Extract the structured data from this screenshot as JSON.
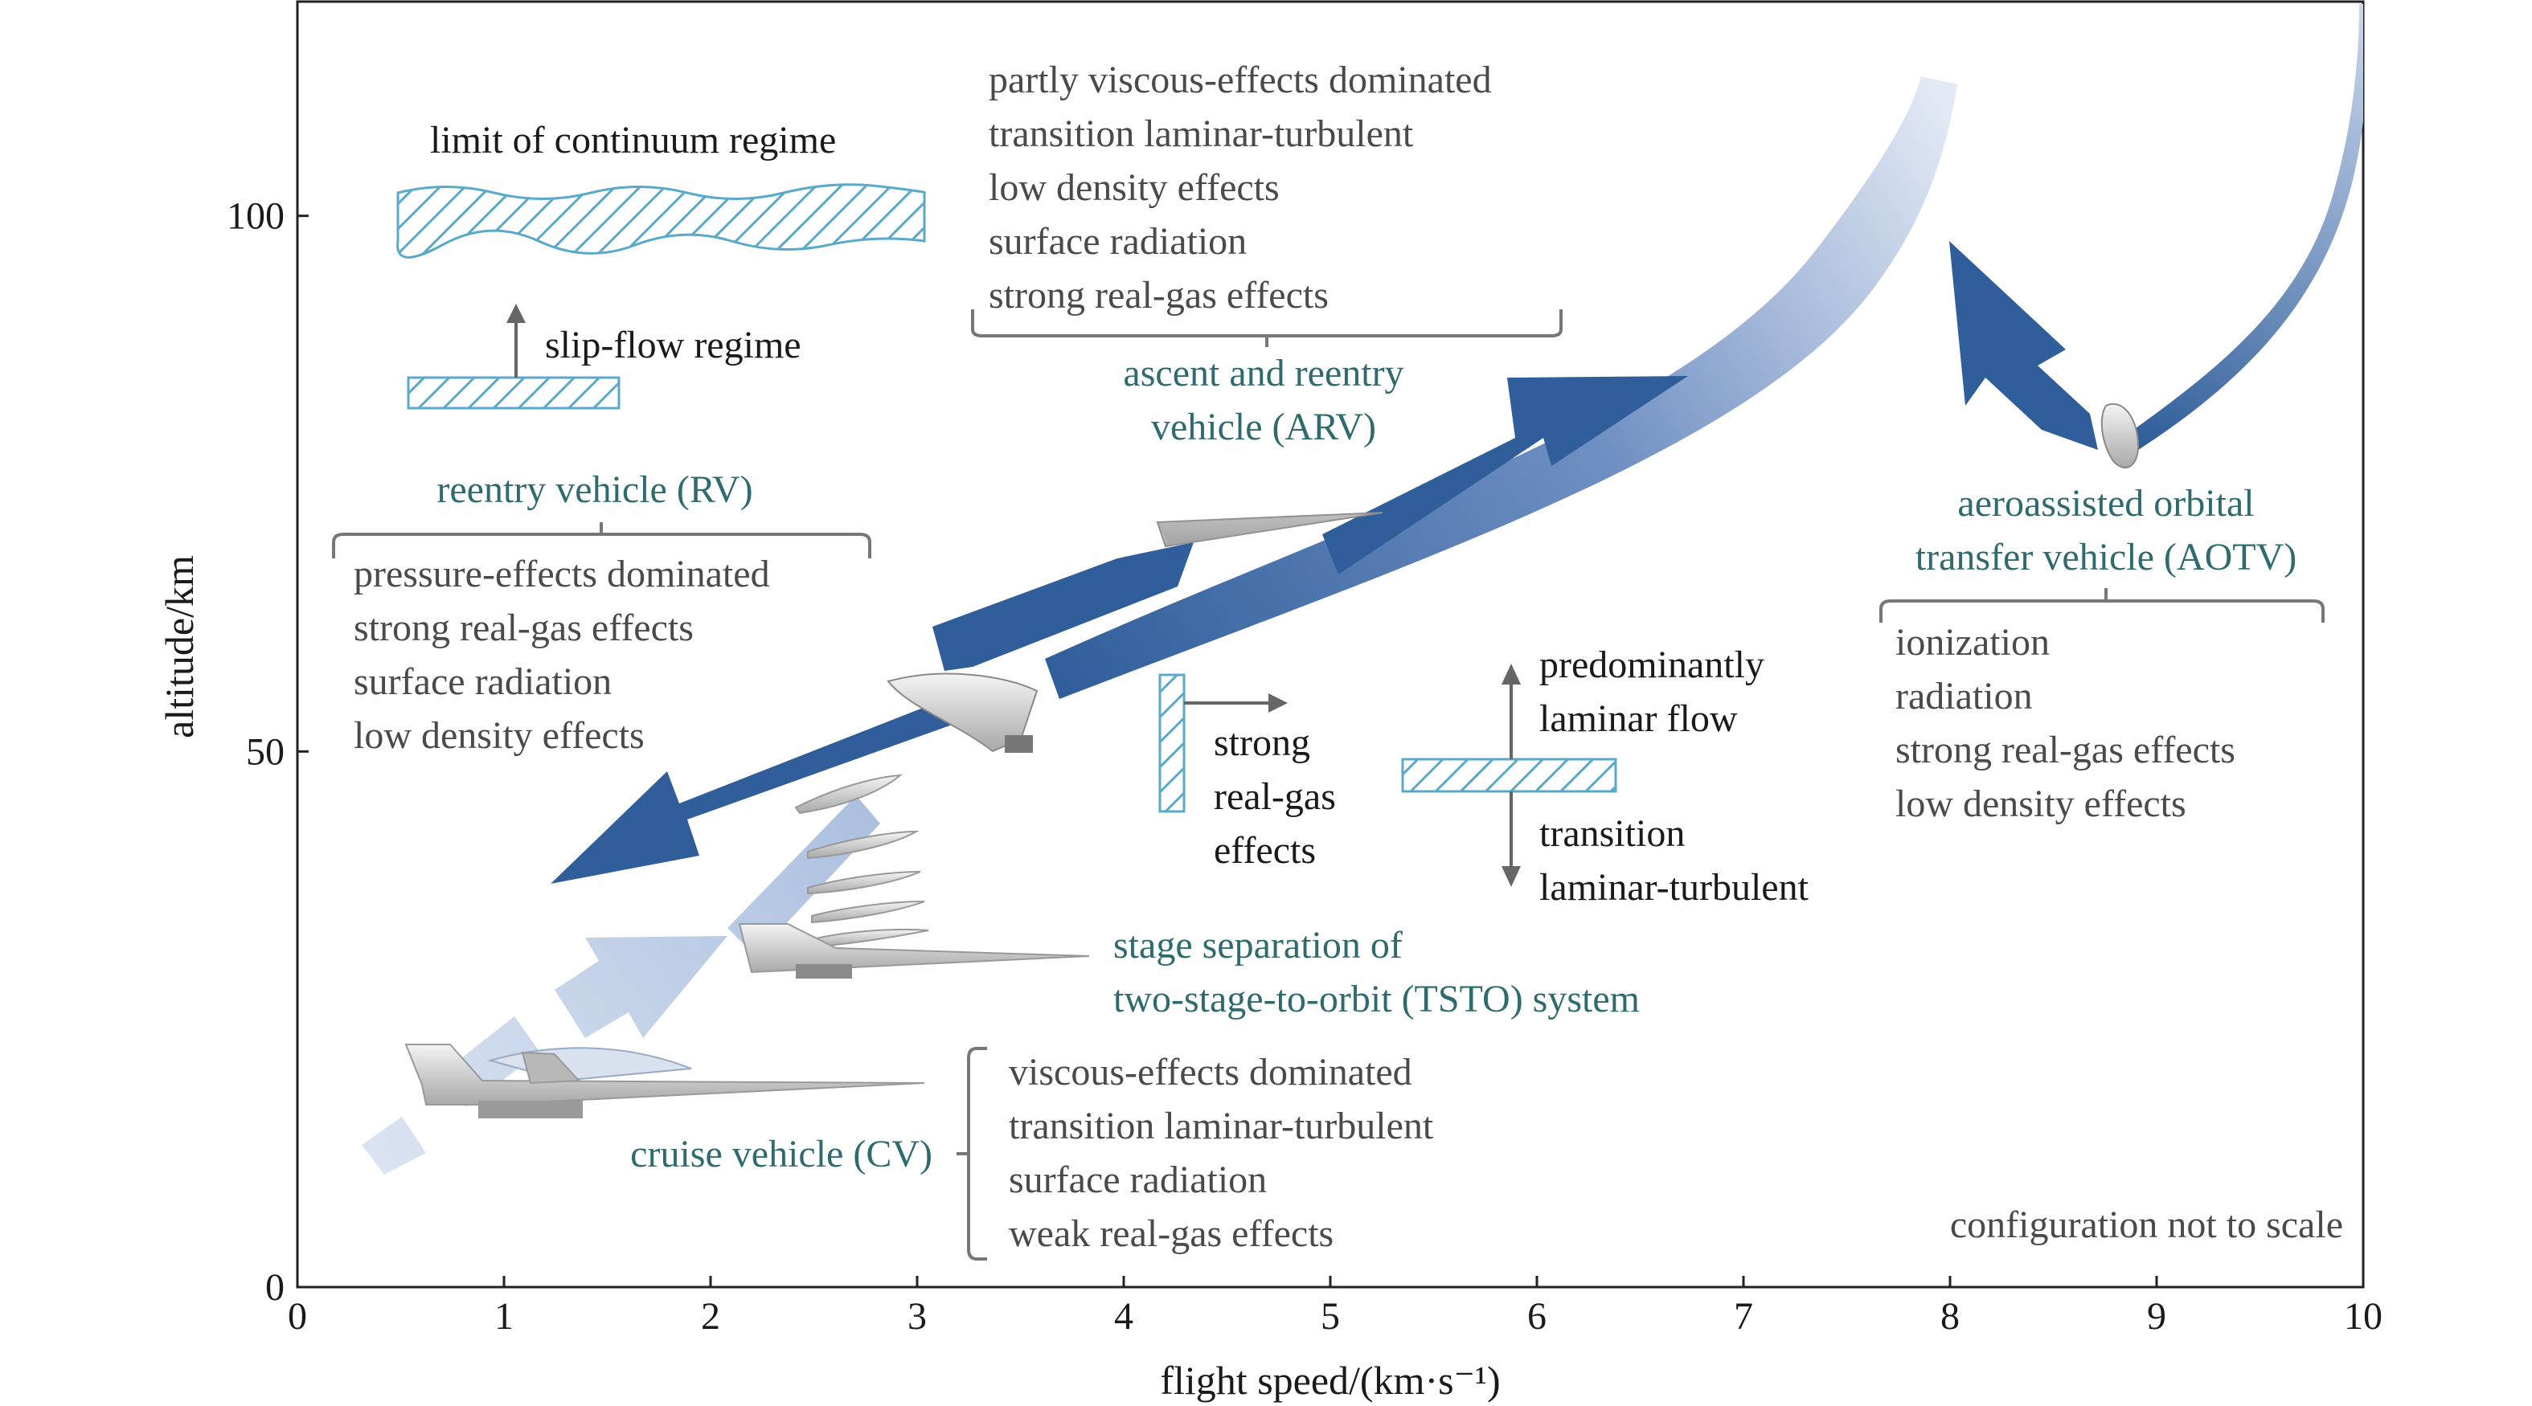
{
  "chart_data": {
    "type": "diagram-chart",
    "title": "",
    "xlabel": "flight speed/(km·s⁻¹)",
    "ylabel": "altitude/km",
    "xlim": [
      0,
      10
    ],
    "ylim": [
      0,
      120
    ],
    "x_ticks": [
      {
        "v": 0,
        "label": "0"
      },
      {
        "v": 1,
        "label": "1"
      },
      {
        "v": 2,
        "label": "2"
      },
      {
        "v": 3,
        "label": "3"
      },
      {
        "v": 4,
        "label": "4"
      },
      {
        "v": 5,
        "label": "5"
      },
      {
        "v": 6,
        "label": "6"
      },
      {
        "v": 7,
        "label": "7"
      },
      {
        "v": 8,
        "label": "8"
      },
      {
        "v": 9,
        "label": "9"
      },
      {
        "v": 10,
        "label": "10"
      }
    ],
    "y_ticks": [
      {
        "v": 0,
        "label": "0"
      },
      {
        "v": 50,
        "label": "50"
      },
      {
        "v": 100,
        "label": "100"
      }
    ],
    "regime_labels": {
      "continuum": "limit of continuum regime",
      "slip_flow": "slip-flow regime",
      "strong_real_gas": [
        "strong",
        "real-gas",
        "effects"
      ],
      "laminar": [
        "predominantly",
        "laminar flow"
      ],
      "transition": [
        "transition",
        "laminar-turbulent"
      ]
    },
    "vehicles": {
      "arv": {
        "name": [
          "ascent and reentry",
          "vehicle (ARV)"
        ],
        "effects": [
          "partly viscous-effects dominated",
          "transition laminar-turbulent",
          "low density effects",
          "surface radiation",
          "strong real-gas effects"
        ]
      },
      "rv": {
        "name": [
          "reentry vehicle (RV)"
        ],
        "effects": [
          "pressure-effects dominated",
          "strong real-gas effects",
          "surface radiation",
          "low density effects"
        ]
      },
      "aotv": {
        "name": [
          "aeroassisted orbital",
          "transfer vehicle (AOTV)"
        ],
        "effects": [
          "ionization",
          "radiation",
          "strong real-gas effects",
          "low density effects"
        ]
      },
      "tsto": {
        "name": [
          "stage separation of",
          "two-stage-to-orbit (TSTO) system"
        ]
      },
      "cv": {
        "name": [
          "cruise vehicle (CV)"
        ],
        "effects": [
          "viscous-effects dominated",
          "transition laminar-turbulent",
          "surface radiation",
          "weak real-gas effects"
        ]
      }
    },
    "note": "configuration not to scale"
  },
  "colors": {
    "arrow_dark": "#2f5e9a",
    "arrow_light": "#b9c9e3",
    "hatch": "#5aa9c9",
    "teal_text": "#2f6b6e",
    "gray_text": "#4a4a4a"
  }
}
